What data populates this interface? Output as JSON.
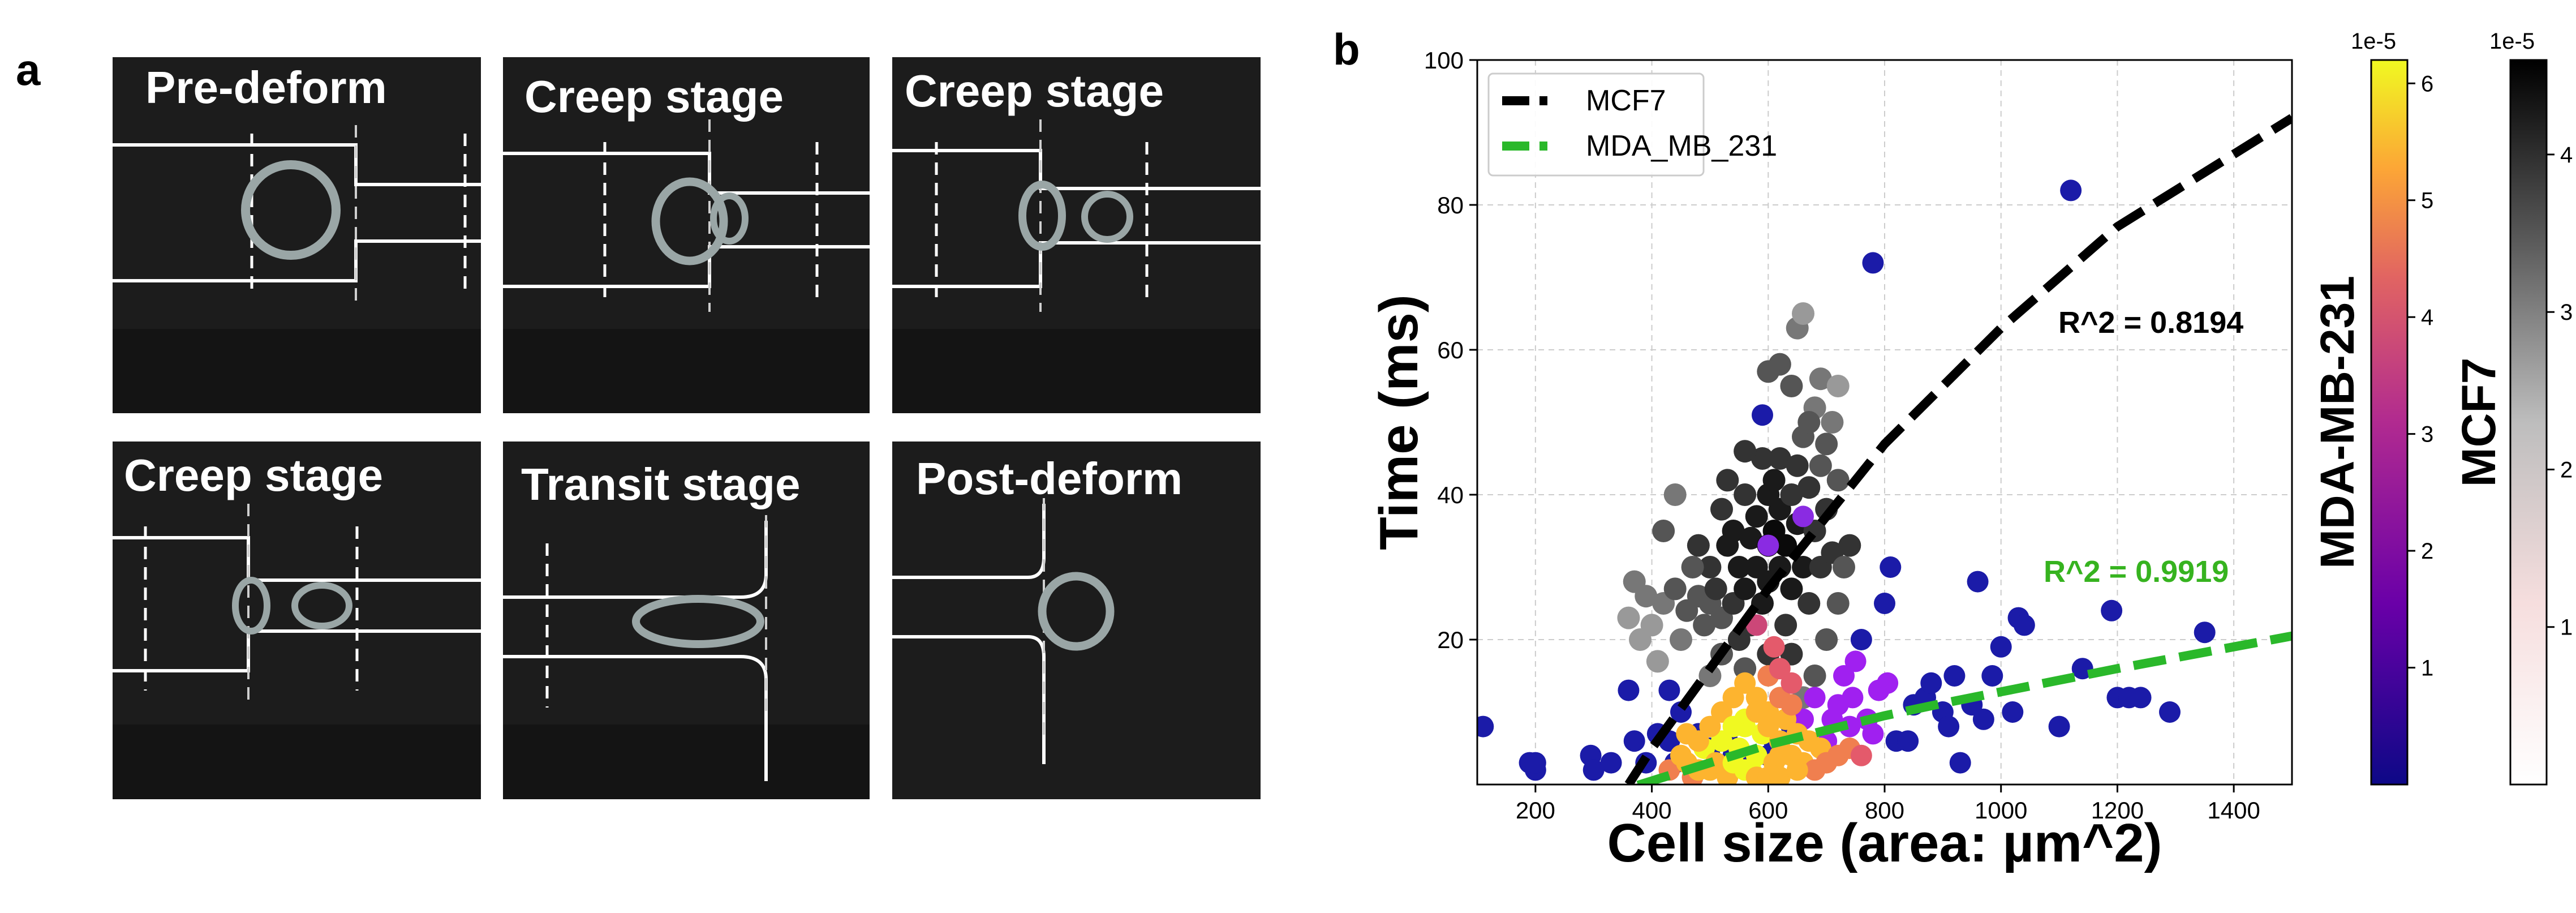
{
  "panel_a": {
    "letter": "a",
    "images": [
      {
        "caption": "Pre-deform"
      },
      {
        "caption": "Creep stage"
      },
      {
        "caption": "Creep stage"
      },
      {
        "caption": "Creep stage"
      },
      {
        "caption": "Transit stage"
      },
      {
        "caption": "Post-deform"
      }
    ]
  },
  "panel_b": {
    "letter": "b"
  },
  "chart_data": {
    "type": "scatter",
    "xlabel": "Cell size (area: µm^2)",
    "ylabel": "Time (ms)",
    "xlim": [
      100,
      1500
    ],
    "ylim": [
      0,
      100
    ],
    "xticks": [
      200,
      400,
      600,
      800,
      1000,
      1200,
      1400
    ],
    "yticks": [
      20,
      40,
      60,
      80,
      100
    ],
    "grid": true,
    "legend": {
      "placement": "top-left",
      "entries": [
        {
          "label": "MCF7",
          "color": "#000000"
        },
        {
          "label": "MDA_MB_231",
          "color": "#2ab82a"
        }
      ]
    },
    "fits": [
      {
        "name": "MCF7",
        "color": "#000000",
        "r2_label": "R^2 = 0.8194",
        "points": [
          [
            360,
            0
          ],
          [
            400,
            5
          ],
          [
            500,
            16
          ],
          [
            600,
            27
          ],
          [
            700,
            37
          ],
          [
            800,
            47
          ],
          [
            900,
            55
          ],
          [
            1000,
            63
          ],
          [
            1100,
            70
          ],
          [
            1200,
            77
          ],
          [
            1300,
            82
          ],
          [
            1400,
            87
          ],
          [
            1500,
            92
          ]
        ]
      },
      {
        "name": "MDA_MB_231",
        "color": "#2ab82a",
        "r2_label": "R^2 = 0.9919",
        "points": [
          [
            300,
            -2
          ],
          [
            400,
            0.5
          ],
          [
            500,
            3
          ],
          [
            600,
            5.5
          ],
          [
            700,
            7.5
          ],
          [
            800,
            9.5
          ],
          [
            900,
            11.2
          ],
          [
            1000,
            12.8
          ],
          [
            1100,
            14.4
          ],
          [
            1200,
            16
          ],
          [
            1300,
            17.5
          ],
          [
            1400,
            19
          ],
          [
            1500,
            20.5
          ]
        ]
      }
    ],
    "mda_points": [
      [
        110,
        8
      ],
      [
        190,
        3
      ],
      [
        200,
        2
      ],
      [
        200,
        3
      ],
      [
        295,
        4
      ],
      [
        300,
        2
      ],
      [
        330,
        3
      ],
      [
        360,
        13
      ],
      [
        370,
        6
      ],
      [
        390,
        3
      ],
      [
        410,
        7
      ],
      [
        430,
        6
      ],
      [
        430,
        13
      ],
      [
        440,
        3
      ],
      [
        450,
        10
      ],
      [
        480,
        7
      ],
      [
        500,
        5
      ],
      [
        530,
        6
      ],
      [
        540,
        4
      ],
      [
        560,
        3
      ],
      [
        600,
        4
      ],
      [
        610,
        6
      ],
      [
        640,
        8
      ],
      [
        660,
        9
      ],
      [
        680,
        12
      ],
      [
        700,
        6
      ],
      [
        710,
        9
      ],
      [
        720,
        11
      ],
      [
        730,
        15
      ],
      [
        740,
        8
      ],
      [
        745,
        12
      ],
      [
        750,
        17
      ],
      [
        760,
        20
      ],
      [
        770,
        9
      ],
      [
        780,
        7
      ],
      [
        790,
        13
      ],
      [
        800,
        25
      ],
      [
        805,
        14
      ],
      [
        810,
        30
      ],
      [
        820,
        6
      ],
      [
        840,
        6
      ],
      [
        850,
        11
      ],
      [
        870,
        12
      ],
      [
        880,
        14
      ],
      [
        900,
        10
      ],
      [
        910,
        8
      ],
      [
        920,
        15
      ],
      [
        930,
        3
      ],
      [
        950,
        11
      ],
      [
        960,
        28
      ],
      [
        970,
        9
      ],
      [
        985,
        15
      ],
      [
        1000,
        19
      ],
      [
        1020,
        10
      ],
      [
        1030,
        23
      ],
      [
        1040,
        22
      ],
      [
        1100,
        8
      ],
      [
        1120,
        82
      ],
      [
        1140,
        16
      ],
      [
        1190,
        24
      ],
      [
        1200,
        12
      ],
      [
        1220,
        12
      ],
      [
        1240,
        12
      ],
      [
        1290,
        10
      ],
      [
        1350,
        21
      ],
      [
        780,
        72
      ],
      [
        660,
        37
      ],
      [
        590,
        51
      ],
      [
        600,
        33
      ]
    ],
    "mda_dense_points": [
      [
        430,
        2
      ],
      [
        450,
        4
      ],
      [
        460,
        3
      ],
      [
        470,
        1
      ],
      [
        480,
        2
      ],
      [
        490,
        5
      ],
      [
        500,
        2
      ],
      [
        510,
        3
      ],
      [
        520,
        6
      ],
      [
        530,
        1
      ],
      [
        540,
        3
      ],
      [
        550,
        5
      ],
      [
        560,
        8
      ],
      [
        570,
        2
      ],
      [
        580,
        4
      ],
      [
        590,
        7
      ],
      [
        600,
        10
      ],
      [
        610,
        3
      ],
      [
        620,
        6
      ],
      [
        630,
        9
      ],
      [
        640,
        4
      ],
      [
        650,
        7
      ],
      [
        660,
        3
      ],
      [
        670,
        6
      ],
      [
        680,
        2
      ],
      [
        690,
        5
      ],
      [
        520,
        10
      ],
      [
        540,
        12
      ],
      [
        560,
        14
      ],
      [
        580,
        12
      ],
      [
        600,
        15
      ],
      [
        620,
        12
      ],
      [
        640,
        11
      ],
      [
        560,
        9
      ],
      [
        580,
        10
      ],
      [
        600,
        8
      ],
      [
        620,
        4
      ],
      [
        500,
        8
      ],
      [
        480,
        6
      ],
      [
        460,
        7
      ],
      [
        540,
        8
      ],
      [
        560,
        2
      ],
      [
        580,
        1
      ],
      [
        600,
        1
      ],
      [
        620,
        1
      ],
      [
        650,
        2
      ],
      [
        700,
        3
      ],
      [
        720,
        4
      ],
      [
        740,
        5
      ],
      [
        760,
        4
      ],
      [
        640,
        14
      ],
      [
        620,
        16
      ],
      [
        610,
        19
      ],
      [
        580,
        22
      ]
    ],
    "mcf7_points": [
      [
        400,
        22
      ],
      [
        420,
        25
      ],
      [
        440,
        27
      ],
      [
        450,
        20
      ],
      [
        460,
        24
      ],
      [
        480,
        26
      ],
      [
        490,
        22
      ],
      [
        500,
        25
      ],
      [
        500,
        30
      ],
      [
        510,
        27
      ],
      [
        520,
        23
      ],
      [
        530,
        33
      ],
      [
        540,
        25
      ],
      [
        540,
        35
      ],
      [
        550,
        30
      ],
      [
        550,
        20
      ],
      [
        560,
        27
      ],
      [
        560,
        40
      ],
      [
        570,
        34
      ],
      [
        570,
        22
      ],
      [
        580,
        30
      ],
      [
        580,
        37
      ],
      [
        590,
        25
      ],
      [
        590,
        45
      ],
      [
        600,
        33
      ],
      [
        600,
        40
      ],
      [
        600,
        28
      ],
      [
        610,
        42
      ],
      [
        610,
        35
      ],
      [
        620,
        30
      ],
      [
        620,
        38
      ],
      [
        620,
        45
      ],
      [
        630,
        33
      ],
      [
        630,
        22
      ],
      [
        640,
        40
      ],
      [
        640,
        27
      ],
      [
        650,
        36
      ],
      [
        650,
        44
      ],
      [
        660,
        30
      ],
      [
        660,
        48
      ],
      [
        670,
        41
      ],
      [
        670,
        25
      ],
      [
        680,
        35
      ],
      [
        680,
        52
      ],
      [
        690,
        30
      ],
      [
        690,
        44
      ],
      [
        700,
        38
      ],
      [
        700,
        47
      ],
      [
        710,
        32
      ],
      [
        720,
        42
      ],
      [
        640,
        55
      ],
      [
        620,
        58
      ],
      [
        650,
        63
      ],
      [
        660,
        65
      ],
      [
        600,
        57
      ],
      [
        670,
        50
      ],
      [
        690,
        56
      ],
      [
        710,
        50
      ],
      [
        720,
        55
      ],
      [
        480,
        33
      ],
      [
        470,
        30
      ],
      [
        520,
        38
      ],
      [
        530,
        42
      ],
      [
        560,
        46
      ],
      [
        440,
        40
      ],
      [
        420,
        35
      ],
      [
        390,
        26
      ],
      [
        380,
        20
      ],
      [
        410,
        17
      ],
      [
        700,
        20
      ],
      [
        720,
        25
      ],
      [
        730,
        30
      ],
      [
        740,
        33
      ],
      [
        680,
        15
      ],
      [
        660,
        12
      ],
      [
        640,
        18
      ],
      [
        600,
        18
      ],
      [
        560,
        16
      ],
      [
        520,
        18
      ],
      [
        500,
        15
      ],
      [
        360,
        23
      ],
      [
        370,
        28
      ]
    ],
    "colorbars": [
      {
        "label": "MDA-MB-231",
        "scale_label": "1e-5",
        "ticks": [
          1,
          2,
          3,
          4,
          5,
          6
        ],
        "range": [
          0,
          6.2
        ],
        "colormap": "plasma"
      },
      {
        "label": "MCF7",
        "scale_label": "1e-5",
        "ticks": [
          1,
          2,
          3,
          4
        ],
        "range": [
          0,
          4.6
        ],
        "colormap": "gray-red"
      }
    ]
  },
  "colors": {
    "mcf7_fit": "#000000",
    "mda_fit": "#2ab82a",
    "mda_r2": "#36b31f",
    "grid": "#cccccc"
  }
}
